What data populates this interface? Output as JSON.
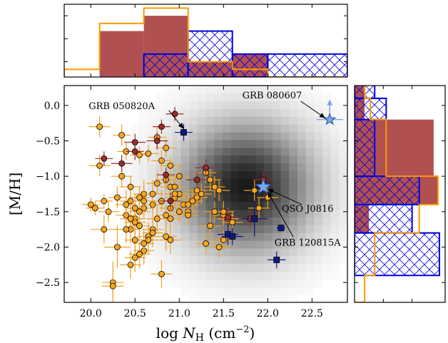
{
  "chart_data": {
    "type": "scatter",
    "xlabel": "log N_H (cm^-2)",
    "ylabel": "[M/H]",
    "xlim": [
      19.7,
      22.9
    ],
    "ylim": [
      -2.78,
      0.28
    ],
    "x_ticks": [
      20.0,
      20.5,
      21.0,
      21.5,
      22.0,
      22.5
    ],
    "x_tick_labels": [
      "20.0",
      "20.5",
      "21.0",
      "21.5",
      "22.0",
      "22.5"
    ],
    "y_ticks": [
      0.0,
      -0.5,
      -1.0,
      -1.5,
      -2.0,
      -2.5
    ],
    "y_tick_labels": [
      "0.0",
      "−0.5",
      "−1.0",
      "−1.5",
      "−2.0",
      "−2.5"
    ],
    "colors": {
      "orange": "#f5a623",
      "darkred": "#9b2c2c",
      "navy": "#0d1a80",
      "blue": "#0000e0",
      "hist_orange": "#ff9900",
      "hist_red": "#b05050",
      "star_blue": "#78a8e8"
    },
    "background_density": {
      "center_x": 21.75,
      "center_y": -1.15,
      "sigma_x": 0.52,
      "sigma_y": 0.62
    },
    "series": [
      {
        "marker": "circle",
        "color": "orange",
        "x": [
          20.1,
          20.05,
          20.15,
          20.35,
          20.4,
          20.55,
          20.65,
          20.75,
          20.85,
          20.9,
          20.8,
          20.6,
          20.3,
          20.45,
          20.2,
          20.0,
          20.45,
          20.6,
          20.5,
          20.55,
          20.4,
          20.45,
          20.5,
          20.55,
          20.65,
          20.7,
          20.7,
          20.8,
          20.85,
          20.9,
          20.95,
          21.0,
          21.05,
          21.1,
          21.15,
          21.2,
          21.3,
          21.35,
          21.4,
          21.45,
          21.5,
          21.5,
          21.55,
          21.4,
          21.35,
          21.3,
          21.45,
          21.5,
          21.25,
          21.2,
          20.95,
          20.9,
          20.85,
          20.8,
          20.75,
          20.7,
          20.65,
          20.6,
          20.55,
          20.5,
          20.3,
          20.25,
          20.15,
          20.4,
          20.45,
          20.5,
          20.6,
          20.7,
          20.75,
          20.9,
          21.0,
          21.1,
          21.15,
          21.6,
          21.9,
          22.0,
          21.85,
          20.25,
          20.35,
          20.1,
          20.4,
          20.55,
          20.6,
          20.8,
          20.85,
          20.95,
          21.0,
          21.1,
          20.9,
          20.45,
          20.5
        ],
        "y": [
          -0.3,
          -1.45,
          -1.35,
          -0.42,
          -0.65,
          -0.7,
          -0.68,
          -0.45,
          -0.6,
          -0.85,
          -0.78,
          -1.25,
          -1.3,
          -1.15,
          -1.5,
          -1.4,
          -1.35,
          -1.45,
          -1.6,
          -1.3,
          -1.55,
          -1.75,
          -1.65,
          -1.5,
          -1.85,
          -1.75,
          -1.4,
          -1.35,
          -1.55,
          -1.45,
          -1.3,
          -1.25,
          -1.4,
          -1.5,
          -1.35,
          -1.3,
          -0.95,
          -1.05,
          -1.15,
          -1.2,
          -1.55,
          -1.5,
          -1.6,
          -1.5,
          -1.7,
          -1.95,
          -2.0,
          -1.9,
          -1.25,
          -1.2,
          -1.25,
          -1.15,
          -1.05,
          -1.35,
          -1.6,
          -1.8,
          -1.9,
          -2.05,
          -2.1,
          -2.15,
          -2.0,
          -2.5,
          -1.75,
          -1.75,
          -1.6,
          -1.9,
          -1.35,
          -1.25,
          -1.1,
          -1.6,
          -1.5,
          -1.4,
          -1.35,
          -1.65,
          -1.45,
          -1.3,
          -1.2,
          -2.55,
          -1.0,
          -0.85,
          -1.4,
          -1.7,
          -1.95,
          -2.38,
          -1.85,
          -1.15,
          -1.0,
          -1.55,
          -1.9,
          -2.25,
          -1.45
        ],
        "xerr": [
          0.12,
          0.1,
          0.1,
          0.1,
          0.1,
          0.1,
          0.12,
          0.1,
          0.12,
          0.12,
          0.12,
          0.12,
          0.1,
          0.12,
          0.12,
          0.1,
          0.12,
          0.12,
          0.12,
          0.12,
          0.12,
          0.1,
          0.12,
          0.12,
          0.12,
          0.12,
          0.12,
          0.12,
          0.12,
          0.12,
          0.12,
          0.12,
          0.12,
          0.12,
          0.12,
          0.12,
          0.12,
          0.12,
          0.12,
          0.12,
          0.12,
          0.12,
          0.12,
          0.12,
          0.12,
          0.12,
          0.12,
          0.12,
          0.12,
          0.12,
          0.12,
          0.12,
          0.12,
          0.12,
          0.12,
          0.12,
          0.12,
          0.12,
          0.12,
          0.12,
          0.15,
          0.12,
          0.15,
          0.12,
          0.12,
          0.12,
          0.12,
          0.12,
          0.12,
          0.12,
          0.12,
          0.12,
          0.12,
          0.12,
          0.12,
          0.12,
          0.12,
          0.12,
          0.12,
          0.12,
          0.12,
          0.12,
          0.12,
          0.12,
          0.12,
          0.12,
          0.12,
          0.12,
          0.12,
          0.12,
          0.12
        ],
        "yerr": [
          0.15,
          0.1,
          0.1,
          0.15,
          0.12,
          0.12,
          0.12,
          0.15,
          0.12,
          0.12,
          0.15,
          0.2,
          0.15,
          0.15,
          0.15,
          0.1,
          0.15,
          0.15,
          0.15,
          0.15,
          0.15,
          0.2,
          0.2,
          0.15,
          0.2,
          0.2,
          0.15,
          0.15,
          0.15,
          0.15,
          0.15,
          0.15,
          0.15,
          0.15,
          0.15,
          0.15,
          0.15,
          0.15,
          0.15,
          0.15,
          0.15,
          0.15,
          0.15,
          0.15,
          0.2,
          0.15,
          0.15,
          0.15,
          0.15,
          0.15,
          0.15,
          0.15,
          0.15,
          0.15,
          0.2,
          0.2,
          0.2,
          0.2,
          0.2,
          0.2,
          0.3,
          0.3,
          0.2,
          0.2,
          0.2,
          0.2,
          0.2,
          0.2,
          0.15,
          0.15,
          0.15,
          0.15,
          0.15,
          0.15,
          0.15,
          0.15,
          0.15,
          0.15,
          0.15,
          0.15,
          0.2,
          0.2,
          0.2,
          0.2,
          0.2,
          0.15,
          0.15,
          0.15,
          0.2,
          0.2,
          0.2
        ]
      },
      {
        "marker": "circle",
        "color": "darkred",
        "x": [
          20.95,
          20.8,
          20.5,
          20.5,
          20.15,
          20.35,
          20.75,
          20.85,
          21.3,
          21.2,
          21.8,
          21.55,
          21.95,
          20.9
        ],
        "y": [
          -0.12,
          -0.3,
          -0.52,
          -0.65,
          -0.75,
          -0.82,
          -0.5,
          -0.98,
          -0.88,
          -1.05,
          -1.6,
          -1.58,
          -1.05,
          -1.35
        ],
        "xerr": [
          0.1,
          0.1,
          0.12,
          0.1,
          0.1,
          0.12,
          0.12,
          0.1,
          0.12,
          0.12,
          0.12,
          0.12,
          0.12,
          0.12
        ],
        "yerr": [
          0.1,
          0.1,
          0.12,
          0.12,
          0.1,
          0.12,
          0.12,
          0.1,
          0.12,
          0.12,
          0.12,
          0.12,
          0.12,
          0.12
        ]
      },
      {
        "marker": "square",
        "color": "navy",
        "x": [
          21.05,
          21.55,
          21.6,
          21.85,
          22.15,
          22.1
        ],
        "y": [
          -0.38,
          -1.82,
          -1.85,
          -1.6,
          -1.73,
          -2.18
        ],
        "xerr": [
          0.1,
          0.12,
          0.12,
          0.15,
          0.05,
          0.1
        ],
        "yerr": [
          0.12,
          0.15,
          0.12,
          0.25,
          0.05,
          0.12
        ]
      }
    ],
    "highlighted": [
      {
        "name": "GRB 080607",
        "x": 22.7,
        "y": -0.2,
        "xerr": 0.15,
        "lower_limit": true
      },
      {
        "name": "QSO J0816",
        "x": 21.95,
        "y": -1.14
      },
      {
        "name": "GRB 120815A",
        "x": 21.95,
        "y": -1.15
      }
    ],
    "annotations": [
      {
        "text": "GRB 050820A",
        "text_x": 20.35,
        "text_y": -0.05,
        "arrow_to_x": 21.05,
        "arrow_to_y": -0.33
      },
      {
        "text": "GRB 080607",
        "text_x": 22.05,
        "text_y": 0.1,
        "arrow_to_x": 22.65,
        "arrow_to_y": -0.18
      },
      {
        "text": "QSO J0816",
        "text_x": 22.45,
        "text_y": -1.5,
        "arrow_to_x": 22.0,
        "arrow_to_y": -1.18
      },
      {
        "text": "GRB 120815A",
        "text_x": 22.45,
        "text_y": -1.98,
        "arrow_to_x": 22.0,
        "arrow_to_y": -1.22
      }
    ],
    "top_histogram": {
      "bin_edges": [
        19.7,
        20.1,
        20.6,
        21.1,
        21.6,
        22.0,
        22.9
      ],
      "red_counts": [
        0,
        6,
        8,
        2,
        3,
        0
      ],
      "orange_counts": [
        1,
        7,
        9,
        2,
        1,
        0
      ],
      "blue_counts": [
        0,
        0,
        3,
        6,
        3,
        3
      ],
      "ymax": 9.5
    },
    "right_histogram": {
      "bin_edges": [
        0.3,
        0.1,
        -0.2,
        -1.0,
        -1.4,
        -1.8,
        -2.4,
        -2.78
      ],
      "red_counts": [
        0.7,
        0.7,
        5.5,
        5.8,
        1.0,
        0,
        0
      ],
      "orange_counts": [
        0.7,
        1.1,
        2.2,
        5.8,
        4.5,
        1.4,
        0.7
      ],
      "blue_counts": [
        1.4,
        2.2,
        1.4,
        4.5,
        4.0,
        5.9,
        0
      ],
      "xmax": 6.3
    }
  }
}
